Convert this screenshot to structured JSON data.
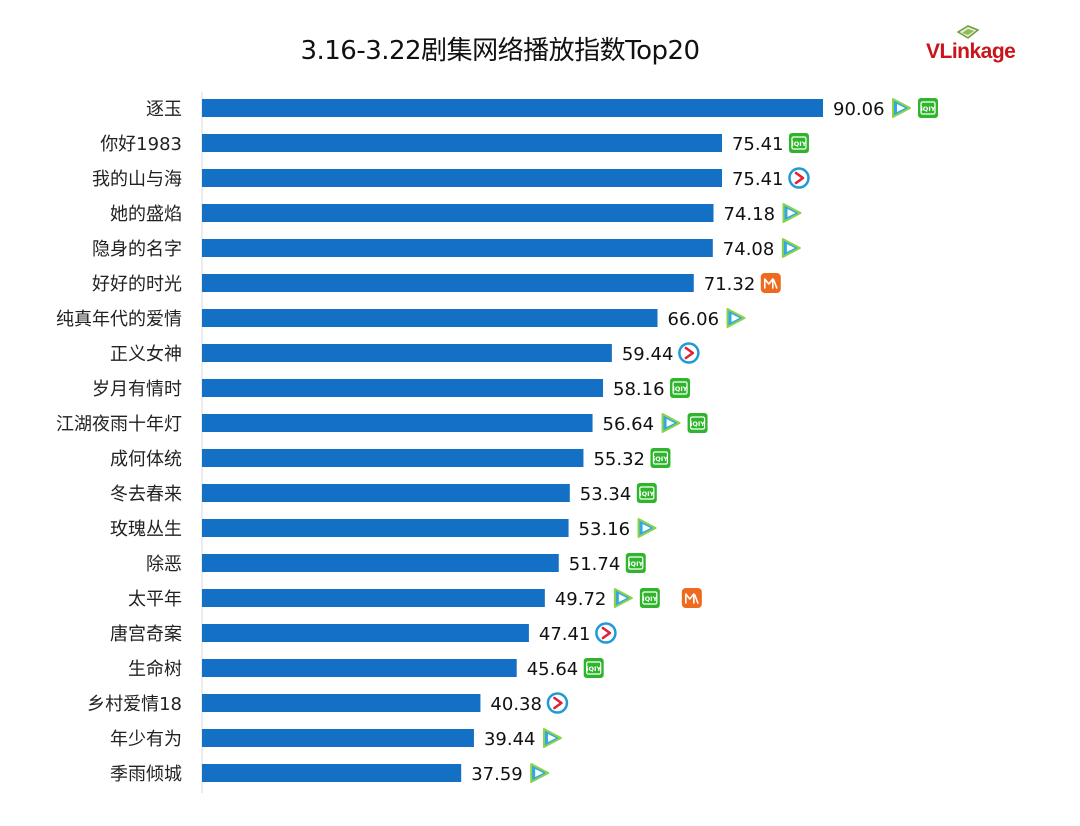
{
  "title": "3.16-3.22剧集网络播放指数Top20",
  "logo": {
    "text": "VLinkage",
    "color": "#c8141a"
  },
  "colors": {
    "bar": "#1470c4",
    "axis": "#d9d9d9",
    "tencent": "#2fa8e4",
    "iqiyi": "#2fb52c",
    "youku": "#1e9ad6",
    "mango": "#ee6a1e"
  },
  "platform_icons": {
    "tencent": "tencent-video-icon",
    "iqiyi": "iqiyi-icon",
    "youku": "youku-icon",
    "mango": "mango-tv-icon"
  },
  "iqiyi_icon_text": "iQIY",
  "chart_data": {
    "type": "bar",
    "orientation": "horizontal",
    "title": "3.16-3.22剧集网络播放指数Top20",
    "categories": [
      "逐玉",
      "你好1983",
      "我的山与海",
      "她的盛焰",
      "隐身的名字",
      "好好的时光",
      "纯真年代的爱情",
      "正义女神",
      "岁月有情时",
      "江湖夜雨十年灯",
      "成何体统",
      "冬去春来",
      "玫瑰丛生",
      "除恶",
      "太平年",
      "唐宫奇案",
      "生命树",
      "乡村爱情18",
      "年少有为",
      "季雨倾城"
    ],
    "values": [
      90.06,
      75.41,
      75.41,
      74.18,
      74.08,
      71.32,
      66.06,
      59.44,
      58.16,
      56.64,
      55.32,
      53.34,
      53.16,
      51.74,
      49.72,
      47.41,
      45.64,
      40.38,
      39.44,
      37.59
    ],
    "value_labels": [
      "90.06",
      "75.41",
      "75.41",
      "74.18",
      "74.08",
      "71.32",
      "66.06",
      "59.44",
      "58.16",
      "56.64",
      "55.32",
      "53.34",
      "53.16",
      "51.74",
      "49.72",
      "47.41",
      "45.64",
      "40.38",
      "39.44",
      "37.59"
    ],
    "platforms": [
      [
        "tencent",
        "iqiyi"
      ],
      [
        "iqiyi"
      ],
      [
        "youku"
      ],
      [
        "tencent"
      ],
      [
        "tencent"
      ],
      [
        "mango"
      ],
      [
        "tencent"
      ],
      [
        "youku"
      ],
      [
        "iqiyi"
      ],
      [
        "tencent",
        "iqiyi"
      ],
      [
        "iqiyi"
      ],
      [
        "iqiyi"
      ],
      [
        "tencent"
      ],
      [
        "iqiyi"
      ],
      [
        "tencent",
        "iqiyi",
        "mango"
      ],
      [
        "youku"
      ],
      [
        "iqiyi"
      ],
      [
        "youku"
      ],
      [
        "tencent"
      ],
      [
        "tencent"
      ]
    ],
    "xlim": [
      0,
      100
    ],
    "grid": false,
    "legend": "none"
  }
}
